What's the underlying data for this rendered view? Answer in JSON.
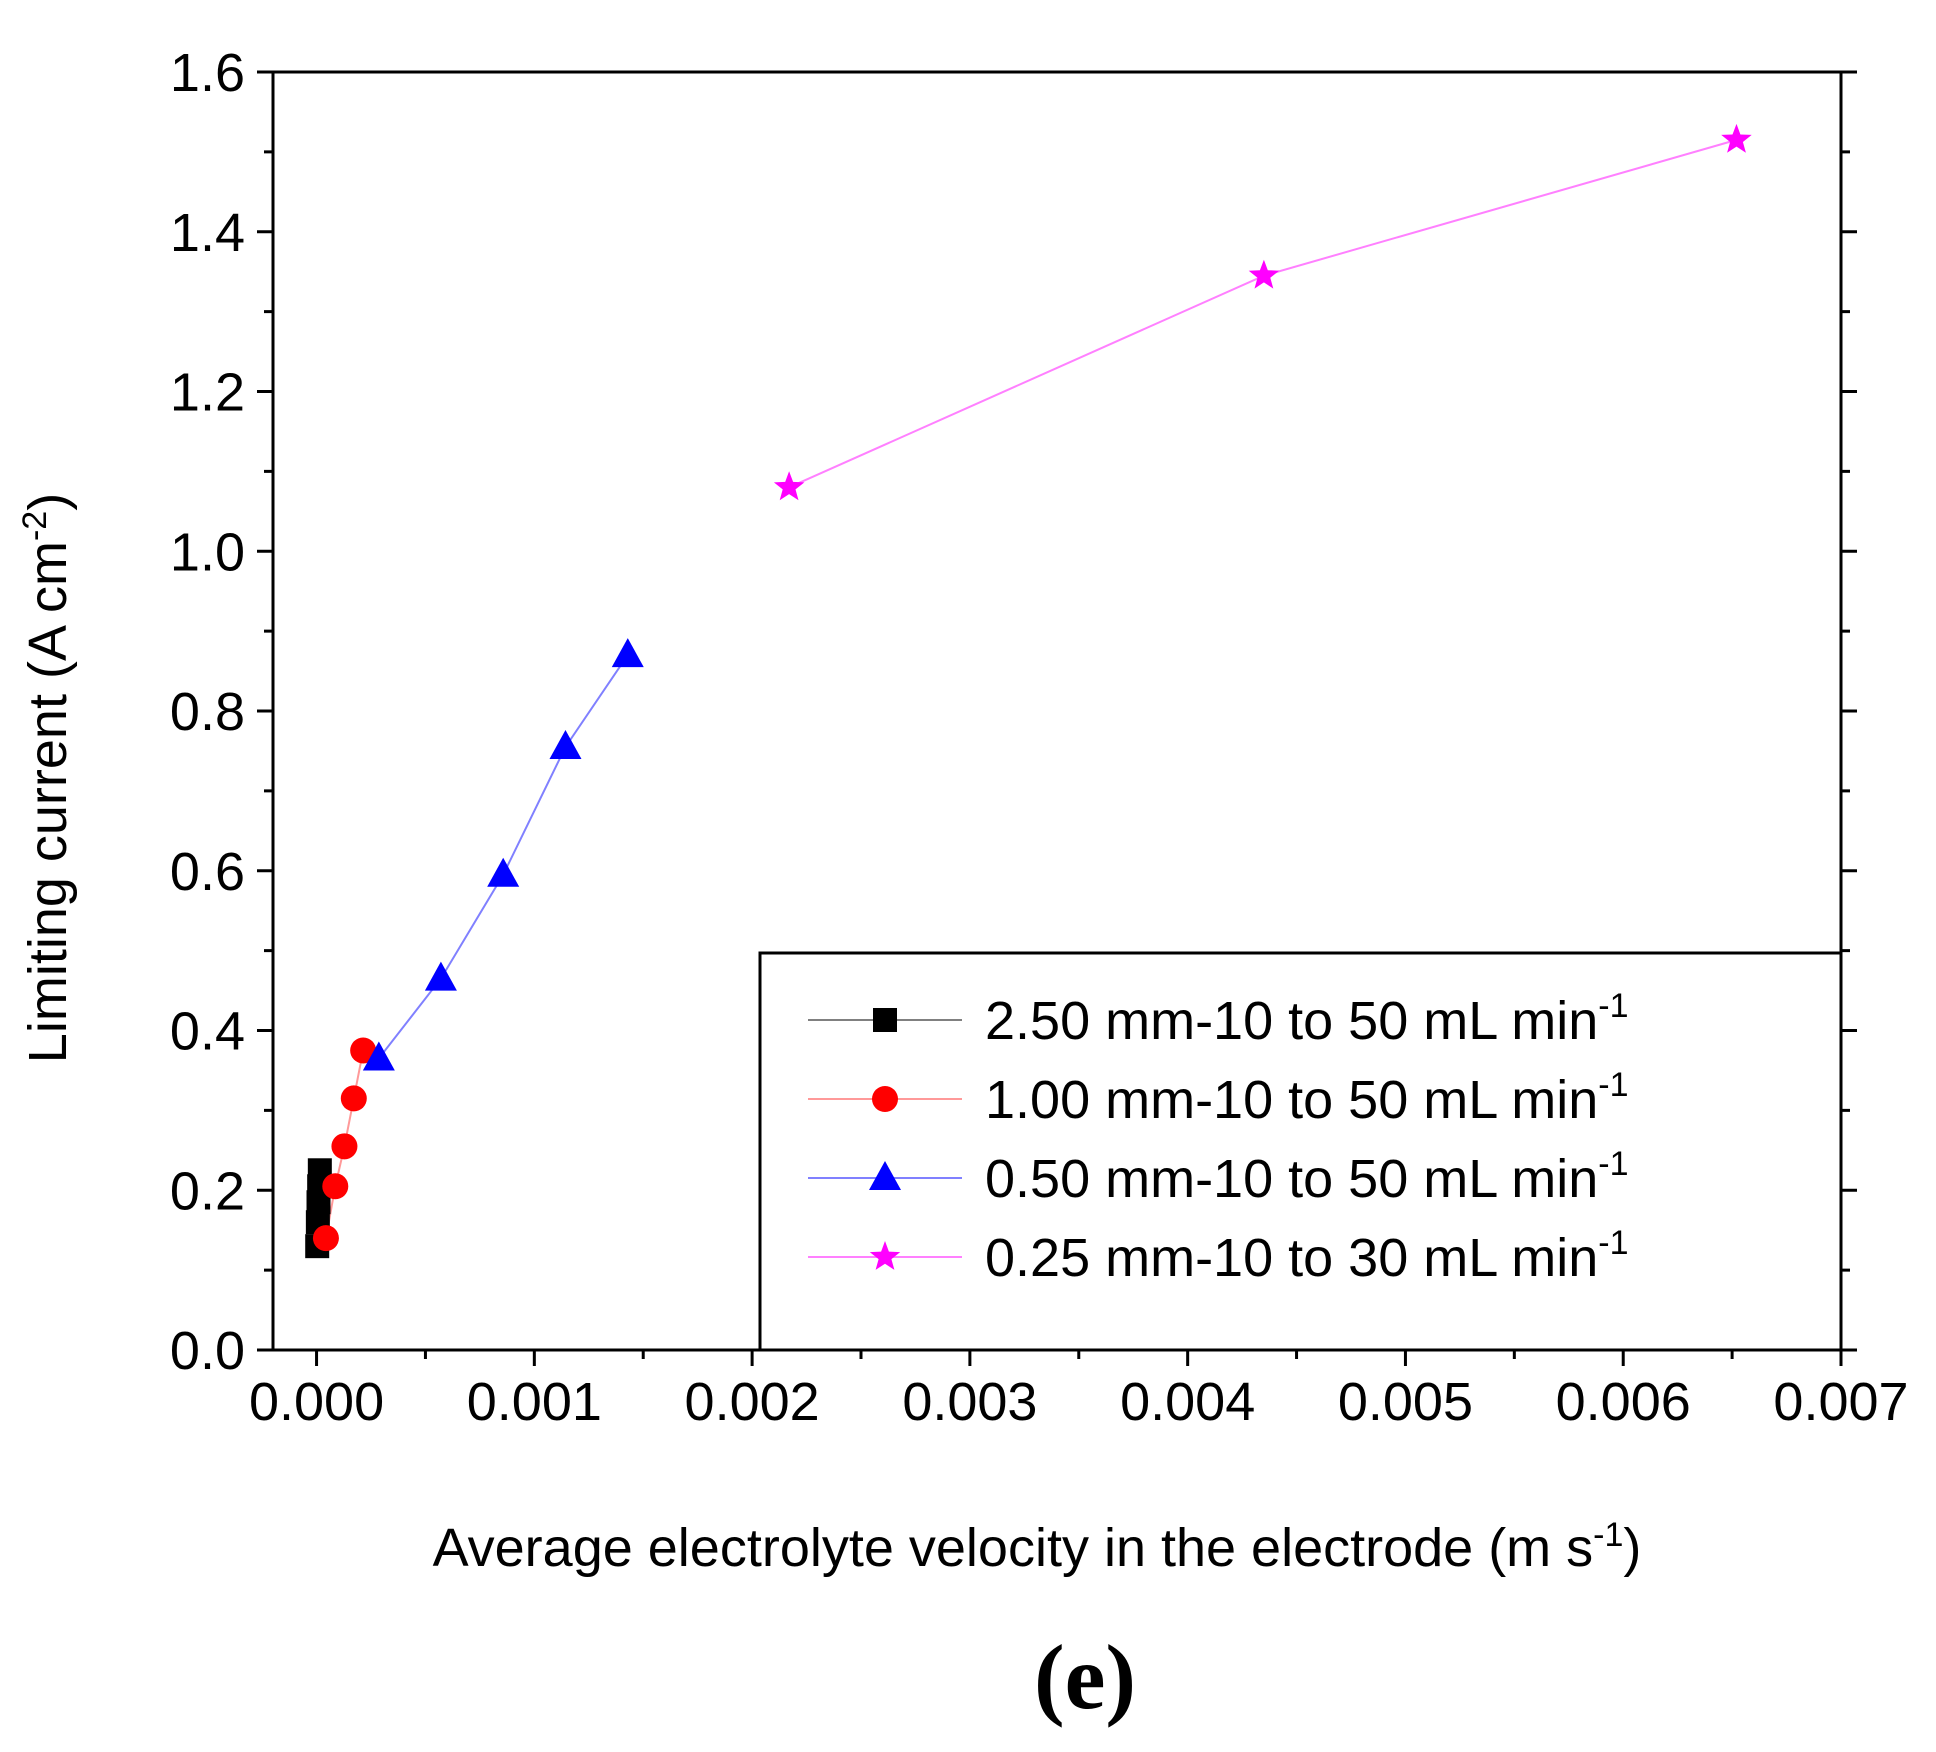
{
  "chart_data": {
    "type": "scatter",
    "title": "",
    "xlabel": "Average electrolyte velocity in the electrode (m s",
    "xlabel_sup": "-1",
    "xlabel_tail": ")",
    "ylabel": "Limiting current (A cm",
    "ylabel_sup": "-2",
    "ylabel_tail": ")",
    "xlim": [
      -0.0002,
      0.007
    ],
    "ylim": [
      0.0,
      1.6
    ],
    "x_ticks": [
      0.0,
      0.001,
      0.002,
      0.003,
      0.004,
      0.005,
      0.006,
      0.007
    ],
    "x_tick_labels": [
      "0.000",
      "0.001",
      "0.002",
      "0.003",
      "0.004",
      "0.005",
      "0.006",
      "0.007"
    ],
    "y_ticks": [
      0.0,
      0.2,
      0.4,
      0.6,
      0.8,
      1.0,
      1.2,
      1.4,
      1.6
    ],
    "y_tick_labels": [
      "0.0",
      "0.2",
      "0.4",
      "0.6",
      "0.8",
      "1.0",
      "1.2",
      "1.4",
      "1.6"
    ],
    "grid": false,
    "legend_position": "bottom-right",
    "panel_label": "(e)",
    "series": [
      {
        "name": "2.50 mm-10 to 50 mL min",
        "name_sup": "-1",
        "marker": "square",
        "color": "#000000",
        "line_color": "#808080",
        "x": [
          3e-06,
          6e-06,
          9e-06,
          1.2e-05,
          1.5e-05
        ],
        "y": [
          0.13,
          0.16,
          0.185,
          0.205,
          0.225
        ]
      },
      {
        "name": "1.00 mm-10 to 50 mL min",
        "name_sup": "-1",
        "marker": "circle",
        "color": "#ff0000",
        "line_color": "#ff9999",
        "x": [
          4.3e-05,
          8.6e-05,
          0.000128,
          0.000171,
          0.000214
        ],
        "y": [
          0.14,
          0.205,
          0.255,
          0.315,
          0.375
        ]
      },
      {
        "name": "0.50 mm-10 to 50 mL min",
        "name_sup": "-1",
        "marker": "triangle",
        "color": "#0000ff",
        "line_color": "#8080ff",
        "x": [
          0.000286,
          0.000571,
          0.000857,
          0.001143,
          0.001429
        ],
        "y": [
          0.365,
          0.465,
          0.595,
          0.755,
          0.87
        ]
      },
      {
        "name": "0.25 mm-10 to 30 mL min",
        "name_sup": "-1",
        "marker": "star",
        "color": "#ff00ff",
        "line_color": "#ff80ff",
        "x": [
          0.00217,
          0.00435,
          0.00652
        ],
        "y": [
          1.08,
          1.345,
          1.515
        ]
      }
    ]
  }
}
